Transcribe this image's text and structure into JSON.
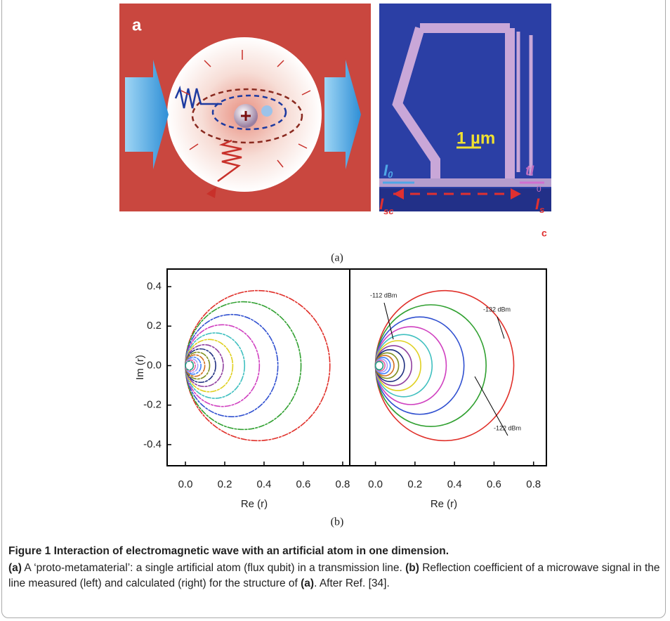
{
  "figure": {
    "panel_a": {
      "left": {
        "label": "a"
      },
      "right": {
        "scale_bar": "1 µm",
        "input": {
          "symbol": "I",
          "sub": "0"
        },
        "transmitted": {
          "symbol": "tI",
          "sub": "0"
        },
        "scattered": {
          "symbol": "I",
          "sub": "sc"
        },
        "source": {
          "symbol": "I",
          "sub": "s"
        },
        "label": "c"
      },
      "caption": "(a)"
    },
    "panel_b": {
      "caption": "(b)",
      "plots": [
        {
          "xlim": [
            -0.093,
            0.836
          ],
          "ylim": [
            -0.507,
            0.489
          ],
          "xticks": [
            {
              "value": 0,
              "label": "0.0"
            },
            0.2,
            0.4,
            0.6,
            0.8
          ],
          "yticks": [
            -0.4,
            -0.2,
            {
              "value": 0,
              "label": "0.0"
            },
            0.2,
            0.4
          ],
          "xlabel": "Re (r)",
          "ylabel": "Im (r)"
        },
        {
          "xlim": [
            -0.13,
            0.865
          ],
          "ylim": [
            -0.507,
            0.489
          ],
          "xticks": [
            {
              "value": 0,
              "label": "0.0"
            },
            0.2,
            0.4,
            0.6,
            0.8
          ],
          "xlabel": "Re (r)",
          "annotations": [
            "-112 dBm",
            "-132 dBm",
            "-122 dBm"
          ]
        }
      ]
    },
    "caption": {
      "title": "Figure 1  Interaction of electromagnetic wave with an artificial atom in one dimension.",
      "body": [
        {
          "text": "(a)",
          "bold": true
        },
        {
          "text": " A ‘proto-metamaterial’: a single artificial atom (flux qubit) in a transmission line. ",
          "bold": false
        },
        {
          "text": "(b)",
          "bold": true
        },
        {
          "text": " Reflection coefficient of a microwave signal in the line measured (left) and calculated (right) for the structure of ",
          "bold": false
        },
        {
          "text": "(a)",
          "bold": true
        },
        {
          "text": ". After Ref. [34].",
          "bold": false
        }
      ]
    }
  }
}
